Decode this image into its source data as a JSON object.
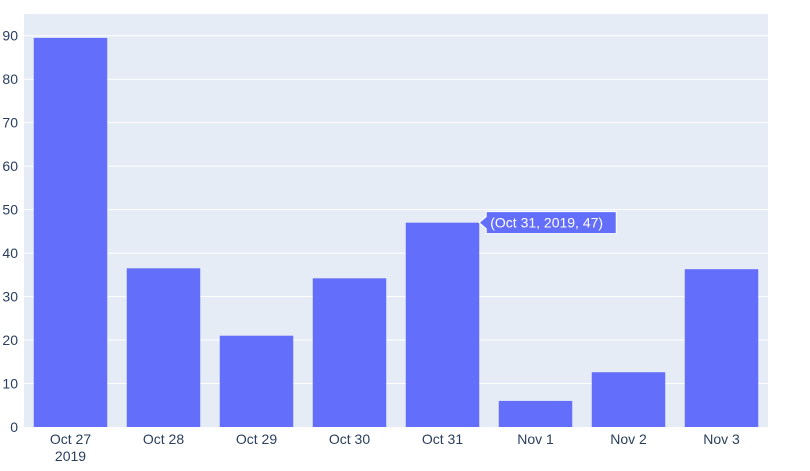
{
  "chart_data": {
    "type": "bar",
    "categories": [
      "Oct 27",
      "Oct 28",
      "Oct 29",
      "Oct 30",
      "Oct 31",
      "Nov 1",
      "Nov 2",
      "Nov 3"
    ],
    "x": [
      "2019-10-27",
      "2019-10-28",
      "2019-10-29",
      "2019-10-30",
      "2019-10-31",
      "2019-11-01",
      "2019-11-02",
      "2019-11-03"
    ],
    "values": [
      89.5,
      36.5,
      21,
      34.2,
      47,
      6,
      12.6,
      36.3
    ],
    "year_label": "2019",
    "title": "",
    "xlabel": "",
    "ylabel": "",
    "ylim": [
      0,
      95
    ],
    "yticks": [
      0,
      10,
      20,
      30,
      40,
      50,
      60,
      70,
      80,
      90
    ],
    "grid": true,
    "colors": {
      "bar": "#636efa",
      "plot_bg": "#e5ecf6",
      "grid": "#ffffff",
      "tick_text": "#2a3f5f"
    },
    "hover": {
      "index": 4,
      "text": "(Oct 31, 2019, 47)"
    }
  }
}
